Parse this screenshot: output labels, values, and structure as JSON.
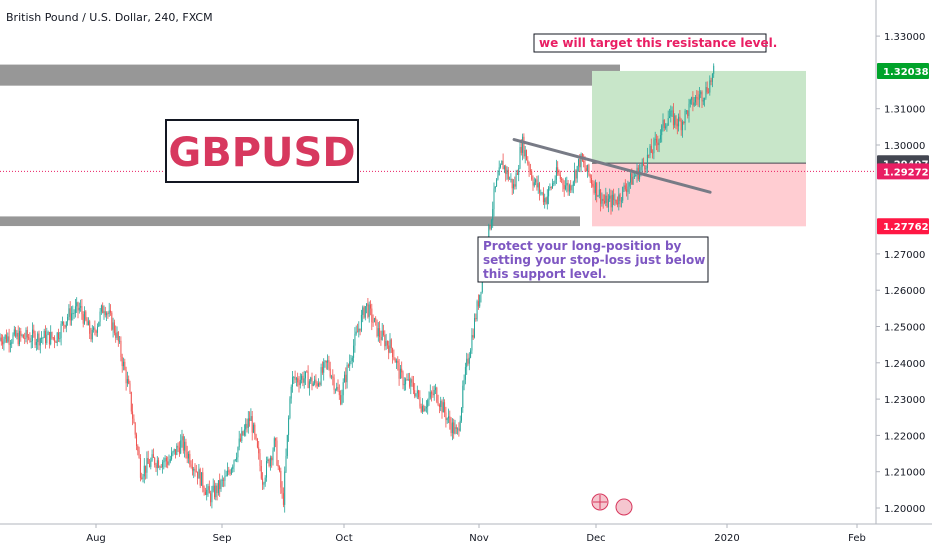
{
  "header": {
    "title": "British Pound / U.S. Dollar, 240, FXCM"
  },
  "chart_data": {
    "type": "candlestick",
    "symbol": "GBPUSD",
    "interval": "240",
    "source": "FXCM",
    "x_labels": [
      "Aug",
      "Sep",
      "Oct",
      "Nov",
      "Dec",
      "2020",
      "Feb"
    ],
    "y_ticks": [
      "1.33000",
      "1.31000",
      "1.30000",
      "1.27000",
      "1.26000",
      "1.25000",
      "1.24000",
      "1.23000",
      "1.22000",
      "1.21000",
      "1.20000"
    ],
    "ylim": [
      1.1975,
      1.3375
    ],
    "price_path": [
      {
        "x": "Jul 22",
        "y": 1.247
      },
      {
        "x": "Jul 25",
        "y": 1.253
      },
      {
        "x": "Jul 28",
        "y": 1.255
      },
      {
        "x": "Jul 31",
        "y": 1.247
      },
      {
        "x": "Aug 03",
        "y": 1.256
      },
      {
        "x": "Aug 06",
        "y": 1.248
      },
      {
        "x": "Aug 09",
        "y": 1.233
      },
      {
        "x": "Aug 12",
        "y": 1.21
      },
      {
        "x": "Aug 15",
        "y": 1.213
      },
      {
        "x": "Aug 19",
        "y": 1.213
      },
      {
        "x": "Aug 22",
        "y": 1.218
      },
      {
        "x": "Aug 25",
        "y": 1.212
      },
      {
        "x": "Aug 29",
        "y": 1.203
      },
      {
        "x": "Sep 02",
        "y": 1.208
      },
      {
        "x": "Sep 05",
        "y": 1.217
      },
      {
        "x": "Sep 08",
        "y": 1.225
      },
      {
        "x": "Sep 11",
        "y": 1.208
      },
      {
        "x": "Sep 14",
        "y": 1.218
      },
      {
        "x": "Sep 16",
        "y": 1.201
      },
      {
        "x": "Sep 18",
        "y": 1.235
      },
      {
        "x": "Sep 21",
        "y": 1.236
      },
      {
        "x": "Sep 24",
        "y": 1.234
      },
      {
        "x": "Sep 27",
        "y": 1.24
      },
      {
        "x": "Sep 30",
        "y": 1.23
      },
      {
        "x": "Oct 03",
        "y": 1.244
      },
      {
        "x": "Oct 06",
        "y": 1.256
      },
      {
        "x": "Oct 09",
        "y": 1.248
      },
      {
        "x": "Oct 12",
        "y": 1.244
      },
      {
        "x": "Oct 14",
        "y": 1.236
      },
      {
        "x": "Oct 17",
        "y": 1.233
      },
      {
        "x": "Oct 19",
        "y": 1.228
      },
      {
        "x": "Oct 22",
        "y": 1.232
      },
      {
        "x": "Oct 25",
        "y": 1.224
      },
      {
        "x": "Oct 27",
        "y": 1.22
      },
      {
        "x": "Oct 29",
        "y": 1.238
      },
      {
        "x": "Nov 01",
        "y": 1.258
      },
      {
        "x": "Nov 03",
        "y": 1.272
      },
      {
        "x": "Nov 05",
        "y": 1.287
      },
      {
        "x": "Nov 07",
        "y": 1.295
      },
      {
        "x": "Nov 10",
        "y": 1.288
      },
      {
        "x": "Nov 12",
        "y": 1.301
      },
      {
        "x": "Nov 15",
        "y": 1.29
      },
      {
        "x": "Nov 18",
        "y": 1.285
      },
      {
        "x": "Nov 21",
        "y": 1.292
      },
      {
        "x": "Nov 24",
        "y": 1.288
      },
      {
        "x": "Nov 27",
        "y": 1.296
      },
      {
        "x": "Nov 30",
        "y": 1.29
      },
      {
        "x": "Dec 03",
        "y": 1.284
      },
      {
        "x": "Dec 06",
        "y": 1.285
      },
      {
        "x": "Dec 09",
        "y": 1.29
      },
      {
        "x": "Dec 12",
        "y": 1.294
      },
      {
        "x": "Dec 15",
        "y": 1.3
      },
      {
        "x": "Dec 18",
        "y": 1.308
      },
      {
        "x": "Dec 21",
        "y": 1.306
      },
      {
        "x": "Dec 24",
        "y": 1.312
      },
      {
        "x": "Dec 27",
        "y": 1.315
      },
      {
        "x": "Dec 29",
        "y": 1.32
      }
    ],
    "zones": {
      "resistance": [
        1.318,
        1.3205
      ],
      "support": [
        1.2785,
        1.2795
      ],
      "profit_zone": [
        1.295,
        1.3204
      ],
      "loss_zone": [
        1.2776,
        1.295
      ]
    },
    "trendline": [
      {
        "x": "Nov 10",
        "y": 1.3015
      },
      {
        "x": "Dec 28",
        "y": 1.287
      }
    ],
    "price_tags": [
      {
        "label": "1.32038",
        "value": 1.32038,
        "color": "#00a32a"
      },
      {
        "label": "1.29497",
        "value": 1.29497,
        "color": "#434651"
      },
      {
        "label": "1.29272",
        "value": 1.29272,
        "color": "#e91e63"
      },
      {
        "label": "1.27762",
        "value": 1.27762,
        "color": "#ff1744"
      }
    ],
    "current_price": 1.29272
  },
  "annotations": {
    "resistance_note": "we will target this resistance level.",
    "ticker_box": "GBPUSD",
    "support_note": [
      "Protect your long-position by",
      "setting your stop-loss just below",
      "this support level."
    ]
  },
  "colors": {
    "up": "#26a69a",
    "down": "#ef5350",
    "zone_gray": "#8c8c8c",
    "profit": "#c8e6c9",
    "loss": "#ffcdd2",
    "current_price": "#e91e63"
  }
}
